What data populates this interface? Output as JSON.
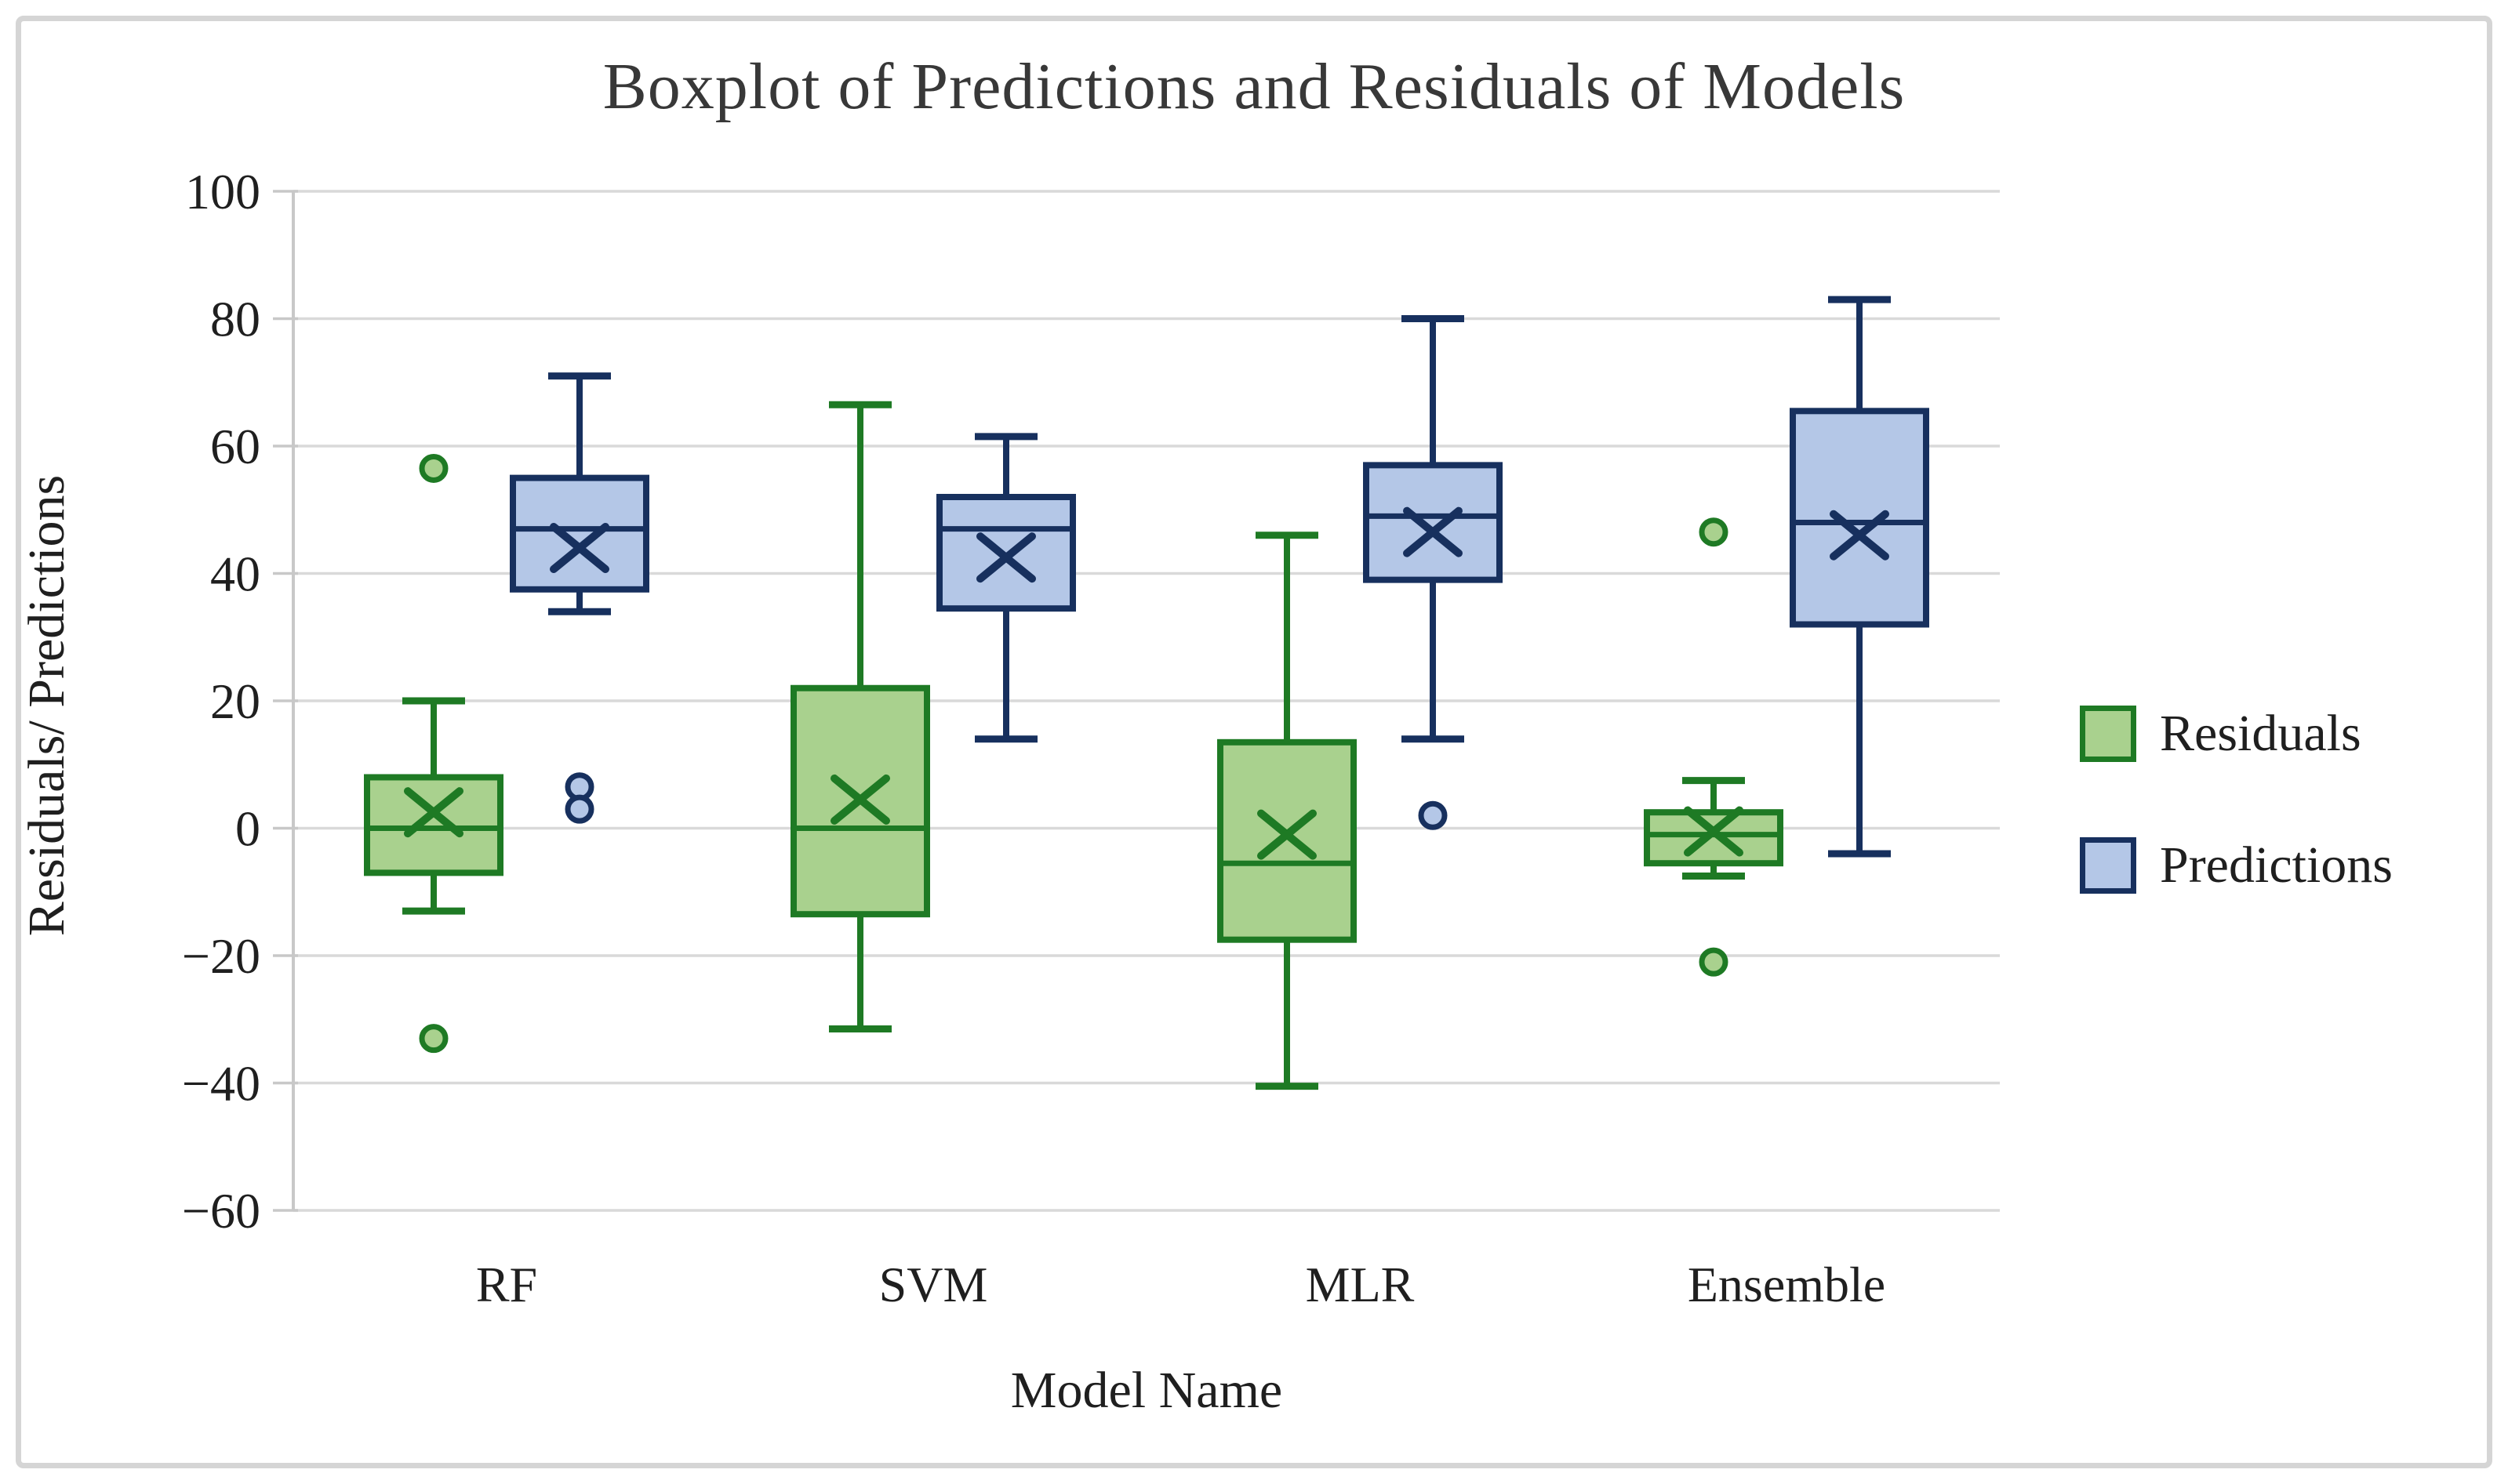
{
  "window": {
    "background": "#ffffff",
    "frame_border_color": "#d5d5d5"
  },
  "chart_data": {
    "type": "boxplot",
    "title": "Boxplot of Predictions and Residuals of Models",
    "xlabel": "Model Name",
    "ylabel": "Residuals/ Predictions",
    "categories": [
      "RF",
      "SVM",
      "MLR",
      "Ensemble"
    ],
    "y_axis": {
      "min": -60,
      "max": 100,
      "tick_step": 20,
      "ticks": [
        100,
        80,
        60,
        40,
        20,
        0,
        -20,
        -40,
        -60
      ],
      "tick_labels": [
        "100",
        "80",
        "60",
        "40",
        "20",
        "0",
        "−20",
        "−40",
        "−60"
      ],
      "gridline_color": "#d9d9d9",
      "axis_line_color": "#c8c8c8",
      "label_color": "#1f1f1f"
    },
    "legend": {
      "position": "right",
      "entries": [
        "Residuals",
        "Predictions"
      ]
    },
    "series": [
      {
        "name": "Residuals",
        "fill": "#a9d18e",
        "stroke": "#1e7a24",
        "boxes": [
          {
            "category": "RF",
            "whisker_low": -13,
            "q1": -7,
            "median": 0,
            "mean": 2.5,
            "q3": 8,
            "whisker_high": 20,
            "outliers": [
              56.5,
              -33
            ]
          },
          {
            "category": "SVM",
            "whisker_low": -31.5,
            "q1": -13.5,
            "median": 0,
            "mean": 4.5,
            "q3": 22,
            "whisker_high": 66.5,
            "outliers": []
          },
          {
            "category": "MLR",
            "whisker_low": -40.5,
            "q1": -17.5,
            "median": -5.5,
            "mean": -1,
            "q3": 13.5,
            "whisker_high": 46,
            "outliers": []
          },
          {
            "category": "Ensemble",
            "whisker_low": -7.5,
            "q1": -5.5,
            "median": -1,
            "mean": -0.5,
            "q3": 2.5,
            "whisker_high": 7.5,
            "outliers": [
              46.5,
              -21
            ]
          }
        ]
      },
      {
        "name": "Predictions",
        "fill": "#b4c7e7",
        "stroke": "#17305e",
        "boxes": [
          {
            "category": "RF",
            "whisker_low": 34,
            "q1": 37.5,
            "median": 47,
            "mean": 44,
            "q3": 55,
            "whisker_high": 71,
            "outliers": [
              6.5,
              3
            ]
          },
          {
            "category": "SVM",
            "whisker_low": 14,
            "q1": 34.5,
            "median": 47,
            "mean": 42.5,
            "q3": 52,
            "whisker_high": 61.5,
            "outliers": []
          },
          {
            "category": "MLR",
            "whisker_low": 14,
            "q1": 39,
            "median": 49,
            "mean": 46.5,
            "q3": 57,
            "whisker_high": 80,
            "outliers": [
              2
            ]
          },
          {
            "category": "Ensemble",
            "whisker_low": -4,
            "q1": 32,
            "median": 48,
            "mean": 46,
            "q3": 65.5,
            "whisker_high": 83,
            "outliers": []
          }
        ]
      }
    ]
  }
}
